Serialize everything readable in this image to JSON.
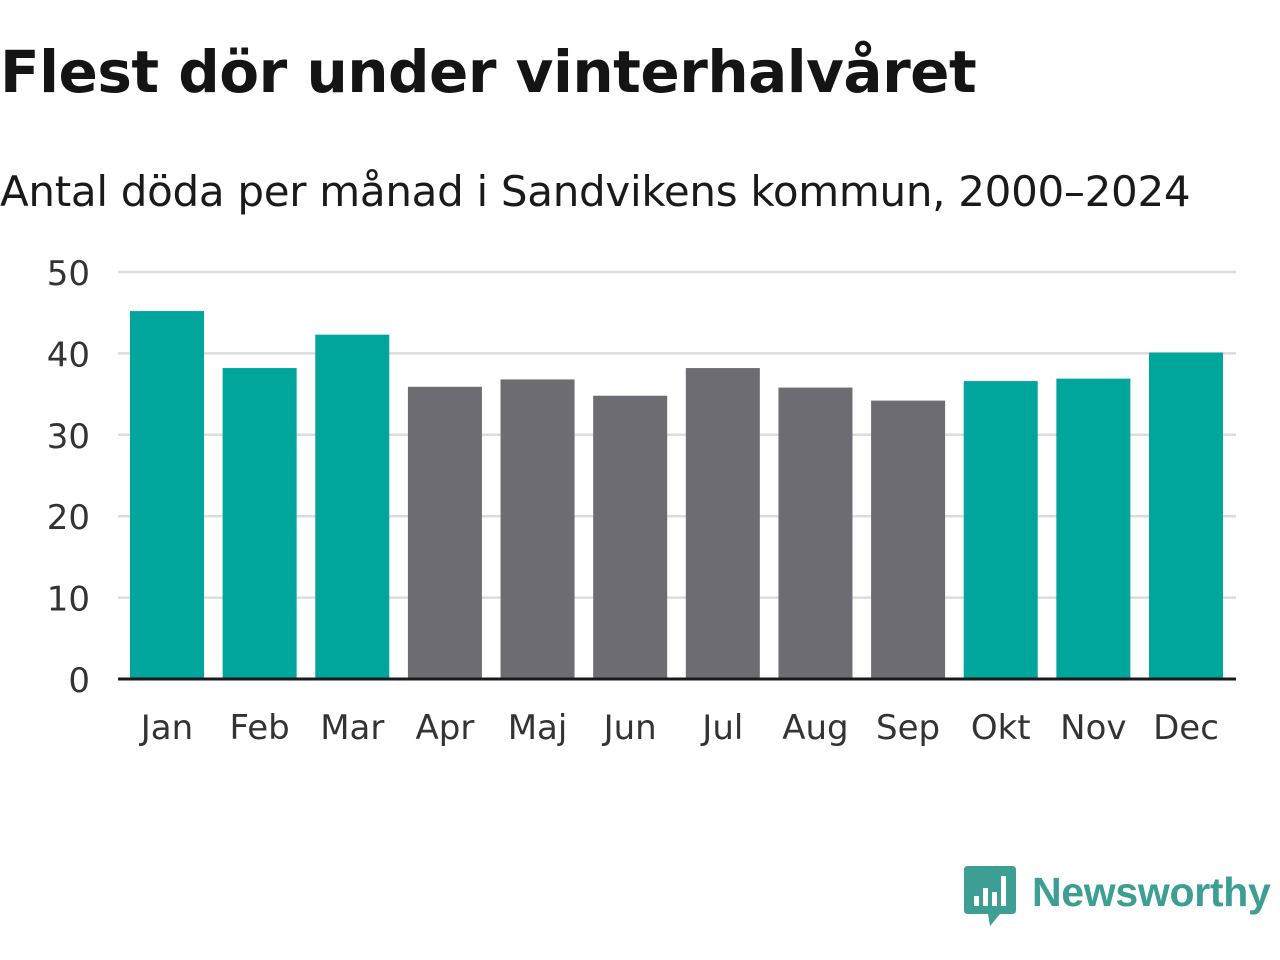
{
  "title": "Flest dör under vinterhalvåret",
  "subtitle": "Antal döda per månad i Sandvikens kommun, 2000–2024",
  "colors": {
    "winter": "#00a59c",
    "summer": "#6d6c72",
    "grid": "#dcdcdc",
    "axis": "#1a1a1a",
    "tick_text": "#333333",
    "logo": "#3d9e93"
  },
  "chart_data": {
    "type": "bar",
    "title": "Flest dör under vinterhalvåret",
    "subtitle": "Antal döda per månad i Sandvikens kommun, 2000–2024",
    "xlabel": "",
    "ylabel": "",
    "ylim": [
      0,
      50
    ],
    "yticks": [
      0,
      10,
      20,
      30,
      40,
      50
    ],
    "grid": true,
    "categories": [
      "Jan",
      "Feb",
      "Mar",
      "Apr",
      "Maj",
      "Jun",
      "Jul",
      "Aug",
      "Sep",
      "Okt",
      "Nov",
      "Dec"
    ],
    "values": [
      45.2,
      38.2,
      42.3,
      35.9,
      36.8,
      34.8,
      38.2,
      35.8,
      34.2,
      36.6,
      36.9,
      40.1
    ],
    "highlight": [
      "winter",
      "winter",
      "winter",
      "summer",
      "summer",
      "summer",
      "summer",
      "summer",
      "summer",
      "winter",
      "winter",
      "winter"
    ]
  },
  "logo": {
    "icon": "newsworthy-chart-bubble-icon",
    "text": "Newsworthy"
  }
}
